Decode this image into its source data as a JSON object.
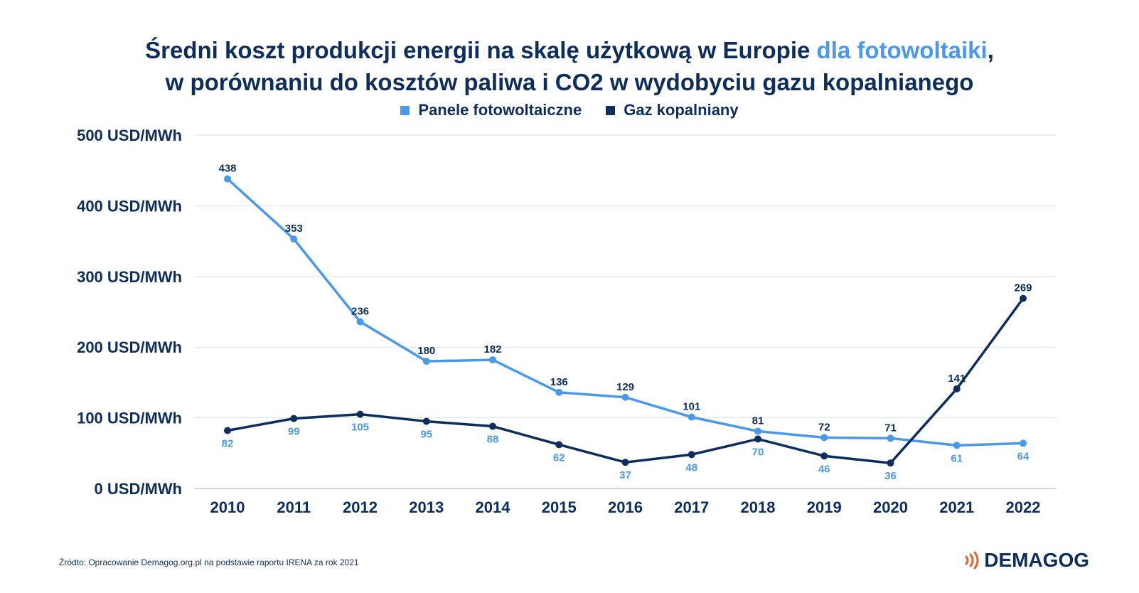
{
  "title": {
    "line1_before": "Średni koszt produkcji energii na skalę użytkową w Europie ",
    "line1_highlight": "dla fotowoltaiki",
    "line1_after": ",",
    "line2": "w porównaniu do kosztów paliwa i CO2 w wydobyciu gazu kopalnianego"
  },
  "colors": {
    "pv": "#4a98ea",
    "gas": "#0d2d5c",
    "grid": "#d9e3ef",
    "text": "#0d2d5c",
    "logo_accent": "#e8622c"
  },
  "footer": {
    "source": "Źródto: Opracowanie Demagog.org.pl na podstawie raportu IRENA za rok 2021",
    "logo_text": "DEMAGOG"
  },
  "chart_data": {
    "type": "line",
    "title": "Średni koszt produkcji energii na skalę użytkową w Europie dla fotowoltaiki, w porównaniu do kosztów paliwa i CO2 w wydobyciu gazu kopalnianego",
    "xlabel": "",
    "ylabel": "",
    "x": [
      "2010",
      "2011",
      "2012",
      "2013",
      "2014",
      "2015",
      "2016",
      "2017",
      "2018",
      "2019",
      "2020",
      "2021",
      "2022"
    ],
    "ylim": [
      0,
      500
    ],
    "yticks": [
      0,
      100,
      200,
      300,
      400,
      500
    ],
    "ytick_labels": [
      "0 USD/MWh",
      "100 USD/MWh",
      "200 USD/MWh",
      "300 USD/MWh",
      "400 USD/MWh",
      "500 USD/MWh"
    ],
    "grid": true,
    "legend_position": "top-center",
    "series": [
      {
        "name": "Panele fotowoltaiczne",
        "color": "#4a98ea",
        "values": [
          438,
          353,
          236,
          180,
          182,
          136,
          129,
          101,
          81,
          72,
          71,
          61,
          64
        ]
      },
      {
        "name": "Gaz kopalniany",
        "color": "#0d2d5c",
        "values": [
          82,
          99,
          105,
          95,
          88,
          62,
          37,
          48,
          70,
          46,
          36,
          141,
          269
        ]
      }
    ],
    "data_labels": {
      "Panele fotowoltaiczne": [
        "438",
        "353",
        "236",
        "180",
        "182",
        "136",
        "129",
        "101",
        "81",
        "72",
        "71",
        "61",
        "64"
      ],
      "Gaz kopalniany": [
        "82",
        "99",
        "105",
        "95",
        "88",
        "62",
        "37",
        "48",
        "70",
        "46",
        "36",
        "141",
        "269"
      ]
    }
  }
}
